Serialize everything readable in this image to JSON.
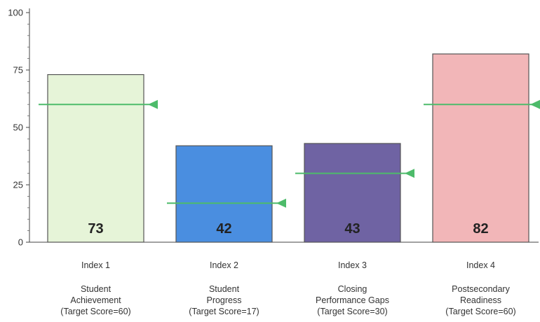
{
  "chart_data": {
    "type": "bar",
    "categories": [
      "Index 1",
      "Index 2",
      "Index 3",
      "Index 4"
    ],
    "descriptions": [
      [
        "Student",
        "Achievement",
        "(Target Score=60)"
      ],
      [
        "Student",
        "Progress",
        "(Target Score=17)"
      ],
      [
        "Closing",
        "Performance Gaps",
        "(Target Score=30)"
      ],
      [
        "Postsecondary",
        "Readiness",
        "(Target Score=60)"
      ]
    ],
    "values": [
      73,
      42,
      43,
      82
    ],
    "targets": [
      60,
      17,
      30,
      60
    ],
    "bar_colors": [
      "#e6f4d8",
      "#4a8ee0",
      "#6f63a3",
      "#f2b6b8"
    ],
    "target_color": "#4dbb6a",
    "ylim": [
      0,
      100
    ],
    "yticks": [
      0,
      25,
      50,
      75,
      100
    ],
    "title": "",
    "xlabel": "",
    "ylabel": ""
  }
}
